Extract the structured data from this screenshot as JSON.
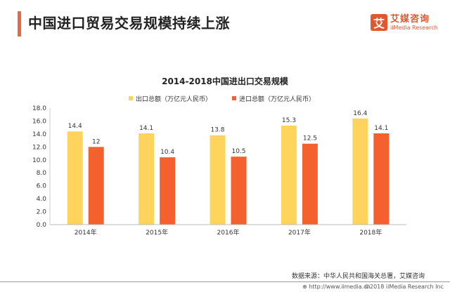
{
  "header": {
    "title": "中国进口贸易交易规模持续上涨",
    "accent_color": "#e8683f"
  },
  "logo": {
    "mark": "艾",
    "name_cn": "艾媒咨询",
    "name_en": "iiMedia Research"
  },
  "footer": {
    "source": "数据来源：中华人民共和国海关总署，艾媒咨询",
    "url": "http://www.iimedia.cn",
    "copyright": "©2018  iiMedia Research  Inc"
  },
  "chart_data": {
    "type": "bar",
    "title": "2014-2018中国进出口交易规模",
    "categories": [
      "2014年",
      "2015年",
      "2016年",
      "2017年",
      "2018年"
    ],
    "series": [
      {
        "name": "出口总额（万亿元人民币）",
        "color": "#ffd45c",
        "values": [
          14.4,
          14.1,
          13.8,
          15.3,
          16.4
        ],
        "labels": [
          "14.4",
          "14.1",
          "13.8",
          "15.3",
          "16.4"
        ]
      },
      {
        "name": "进口总额（万亿元人民币）",
        "color": "#f5602f",
        "values": [
          12,
          10.4,
          10.5,
          12.5,
          14.1
        ],
        "labels": [
          "12",
          "10.4",
          "10.5",
          "12.5",
          "14.1"
        ]
      }
    ],
    "ylim": [
      0,
      18
    ],
    "yticks": [
      "0.0",
      "2.0",
      "4.0",
      "6.0",
      "8.0",
      "10.0",
      "12.0",
      "14.0",
      "16.0",
      "18.0"
    ],
    "xlabel": "",
    "ylabel": "",
    "grid": false,
    "legend_position": "top"
  }
}
